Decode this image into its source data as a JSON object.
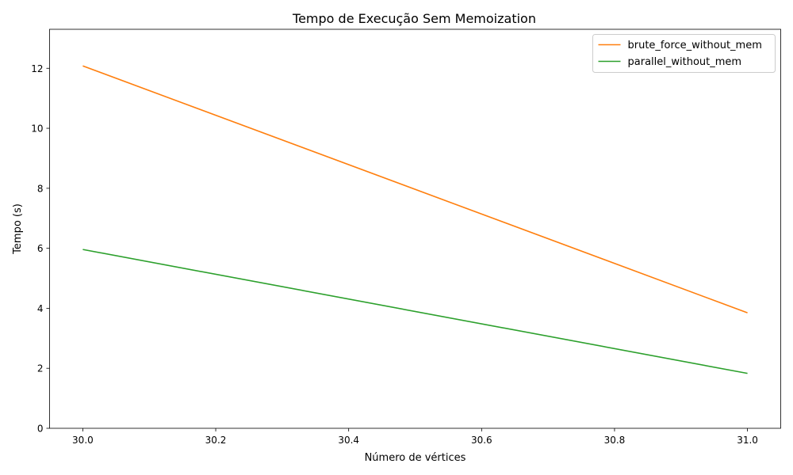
{
  "chart_data": {
    "type": "line",
    "title": "Tempo de Execução Sem Memoization",
    "xlabel": "Número de vértices",
    "ylabel": "Tempo (s)",
    "xlim": [
      29.95,
      31.05
    ],
    "ylim": [
      0,
      13.3
    ],
    "x_ticks": [
      30.0,
      30.2,
      30.4,
      30.6,
      30.8,
      31.0
    ],
    "x_tick_labels": [
      "30.0",
      "30.2",
      "30.4",
      "30.6",
      "30.8",
      "31.0"
    ],
    "y_ticks": [
      0,
      2,
      4,
      6,
      8,
      10,
      12
    ],
    "y_tick_labels": [
      "0",
      "2",
      "4",
      "6",
      "8",
      "10",
      "12"
    ],
    "grid": false,
    "legend_position": "top-right",
    "series": [
      {
        "name": "brute_force_without_mem",
        "color": "#ff7f0e",
        "x": [
          30,
          31
        ],
        "y": [
          12.08,
          3.85
        ]
      },
      {
        "name": "parallel_without_mem",
        "color": "#2ca02c",
        "x": [
          30,
          31
        ],
        "y": [
          5.96,
          1.83
        ]
      }
    ]
  }
}
